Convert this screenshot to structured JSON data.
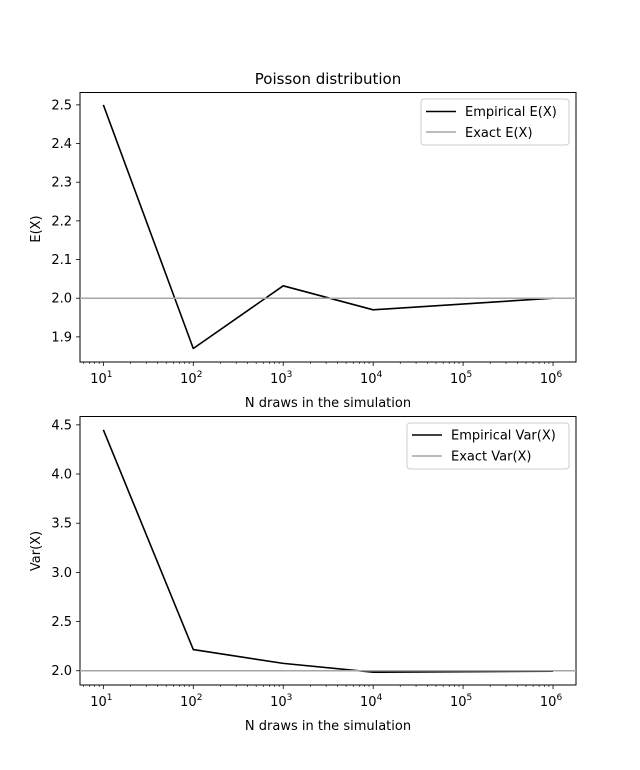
{
  "chart_data": [
    {
      "type": "line",
      "title": "Poisson distribution",
      "xlabel": "N draws in the simulation",
      "ylabel": "E(X)",
      "xscale": "log",
      "xlim": [
        5.5,
        1800000
      ],
      "ylim": [
        1.835,
        2.532
      ],
      "xticks": [
        10,
        100,
        1000,
        10000,
        100000,
        1000000
      ],
      "xtick_labels": [
        {
          "base": "10",
          "exp": "1"
        },
        {
          "base": "10",
          "exp": "2"
        },
        {
          "base": "10",
          "exp": "3"
        },
        {
          "base": "10",
          "exp": "4"
        },
        {
          "base": "10",
          "exp": "5"
        },
        {
          "base": "10",
          "exp": "6"
        }
      ],
      "yticks": [
        1.9,
        2.0,
        2.1,
        2.2,
        2.3,
        2.4,
        2.5
      ],
      "ytick_labels": [
        "1.9",
        "2.0",
        "2.1",
        "2.2",
        "2.3",
        "2.4",
        "2.5"
      ],
      "legend_position": "top-right",
      "series": [
        {
          "name": "Empirical E(X)",
          "color": "#000000",
          "x": [
            10,
            100,
            1000,
            10000,
            1000000
          ],
          "y": [
            2.5,
            1.87,
            2.032,
            1.97,
            2.0
          ]
        },
        {
          "name": "Exact E(X)",
          "color": "#a6a6a6",
          "kind": "hline",
          "y": 2.0
        }
      ]
    },
    {
      "type": "line",
      "title": "",
      "xlabel": "N draws in the simulation",
      "ylabel": "Var(X)",
      "xscale": "log",
      "xlim": [
        5.5,
        1800000
      ],
      "ylim": [
        1.855,
        4.585
      ],
      "xticks": [
        10,
        100,
        1000,
        10000,
        100000,
        1000000
      ],
      "xtick_labels": [
        {
          "base": "10",
          "exp": "1"
        },
        {
          "base": "10",
          "exp": "2"
        },
        {
          "base": "10",
          "exp": "3"
        },
        {
          "base": "10",
          "exp": "4"
        },
        {
          "base": "10",
          "exp": "5"
        },
        {
          "base": "10",
          "exp": "6"
        }
      ],
      "yticks": [
        2.0,
        2.5,
        3.0,
        3.5,
        4.0,
        4.5
      ],
      "ytick_labels": [
        "2.0",
        "2.5",
        "3.0",
        "3.5",
        "4.0",
        "4.5"
      ],
      "legend_position": "top-right",
      "series": [
        {
          "name": "Empirical Var(X)",
          "color": "#000000",
          "x": [
            10,
            100,
            1000,
            10000,
            1000000
          ],
          "y": [
            4.45,
            2.215,
            2.075,
            1.985,
            1.995
          ]
        },
        {
          "name": "Exact Var(X)",
          "color": "#a6a6a6",
          "kind": "hline",
          "y": 2.0
        }
      ]
    }
  ]
}
